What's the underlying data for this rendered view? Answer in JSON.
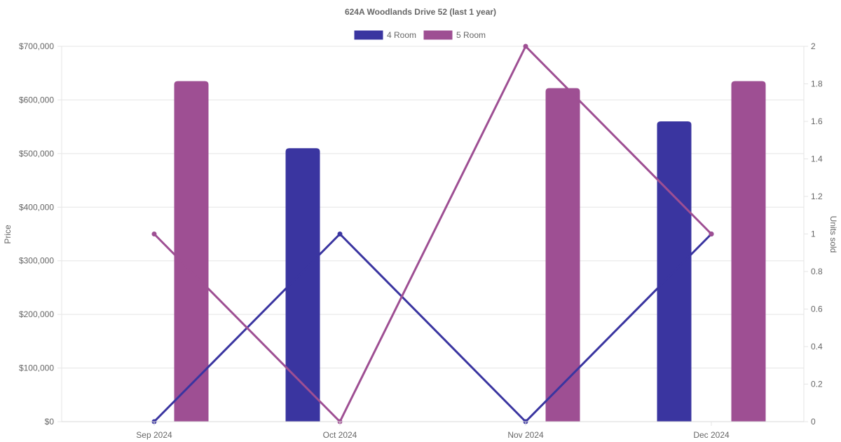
{
  "chart_data": {
    "type": "bar",
    "title": "624A Woodlands Drive 52 (last 1 year)",
    "categories": [
      "Sep 2024",
      "Oct 2024",
      "Nov 2024",
      "Dec 2024"
    ],
    "legend": {
      "position": "top-center",
      "entries": [
        {
          "name": "4 Room",
          "color": "#3a35a0"
        },
        {
          "name": "5 Room",
          "color": "#9e4f93"
        }
      ]
    },
    "y_left": {
      "label": "Price",
      "min": 0,
      "max": 700000,
      "ticks": [
        0,
        100000,
        200000,
        300000,
        400000,
        500000,
        600000,
        700000
      ],
      "tick_labels": [
        "$0",
        "$100,000",
        "$200,000",
        "$300,000",
        "$400,000",
        "$500,000",
        "$600,000",
        "$700,000"
      ]
    },
    "y_right": {
      "label": "Units sold",
      "min": 0,
      "max": 2,
      "ticks": [
        0,
        0.2,
        0.4,
        0.6,
        0.8,
        1,
        1.2,
        1.4,
        1.6,
        1.8,
        2
      ],
      "tick_labels": [
        "0",
        "0.2",
        "0.4",
        "0.6",
        "0.8",
        "1",
        "1.2",
        "1.4",
        "1.6",
        "1.8",
        "2"
      ]
    },
    "grid": true,
    "bars": [
      {
        "name": "4 Room",
        "color": "#3a35a0",
        "values": [
          null,
          510000,
          null,
          560000
        ]
      },
      {
        "name": "5 Room",
        "color": "#9e4f93",
        "values": [
          635000,
          null,
          622000,
          635000
        ]
      }
    ],
    "lines": [
      {
        "name": "4 Room",
        "color": "#3a35a0",
        "values": [
          0,
          1,
          0,
          1
        ]
      },
      {
        "name": "5 Room",
        "color": "#9e4f93",
        "values": [
          1,
          0,
          2,
          1
        ]
      }
    ]
  }
}
